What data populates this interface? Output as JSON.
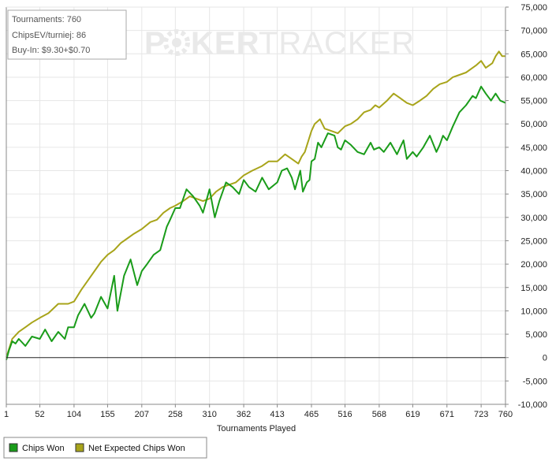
{
  "colors": {
    "chips_won": "#1a9c1a",
    "net_expected": "#a8a41a",
    "grid": "#e6e6e6",
    "zero_line": "#222222",
    "axis": "#888888"
  },
  "watermark": {
    "part1": "P",
    "part2": "KER",
    "part3": "TRACKER"
  },
  "info_box": {
    "line1": "Tournaments: 760",
    "line2": "ChipsEV/turniej: 86",
    "line3": "Buy-In: $9.30+$0.70"
  },
  "legend": {
    "item1": "Chips Won",
    "item2": "Net Expected Chips Won"
  },
  "chart_data": {
    "type": "line",
    "xlabel": "Tournaments Played",
    "ylabel": "",
    "xlim": [
      1,
      760
    ],
    "ylim": [
      -10000,
      75000
    ],
    "x_ticks": [
      1,
      52,
      104,
      155,
      207,
      258,
      310,
      362,
      413,
      465,
      516,
      568,
      619,
      671,
      723,
      760
    ],
    "y_ticks": [
      -10000,
      -5000,
      0,
      5000,
      10000,
      15000,
      20000,
      25000,
      30000,
      35000,
      40000,
      45000,
      50000,
      55000,
      60000,
      65000,
      70000,
      75000
    ],
    "y_tick_labels": [
      "-10,000",
      "-5,000",
      "0",
      "5,000",
      "10,000",
      "15,000",
      "20,000",
      "25,000",
      "30,000",
      "35,000",
      "40,000",
      "45,000",
      "50,000",
      "55,000",
      "60,000",
      "65,000",
      "70,000",
      "75,000"
    ],
    "grid": true,
    "legend_position": "bottom-left",
    "series": [
      {
        "name": "Chips Won",
        "x": [
          1,
          5,
          10,
          15,
          20,
          30,
          40,
          52,
          60,
          70,
          80,
          90,
          95,
          104,
          110,
          120,
          130,
          135,
          145,
          155,
          165,
          170,
          180,
          190,
          200,
          207,
          215,
          225,
          235,
          245,
          250,
          258,
          265,
          275,
          285,
          295,
          300,
          310,
          318,
          325,
          335,
          345,
          355,
          362,
          370,
          380,
          390,
          400,
          413,
          420,
          428,
          435,
          440,
          448,
          452,
          458,
          462,
          465,
          470,
          475,
          480,
          490,
          500,
          505,
          510,
          516,
          525,
          535,
          545,
          555,
          560,
          568,
          575,
          585,
          595,
          605,
          610,
          619,
          625,
          635,
          645,
          655,
          660,
          665,
          671,
          680,
          690,
          700,
          710,
          715,
          723,
          730,
          738,
          745,
          752,
          760
        ],
        "values": [
          -500,
          1500,
          3500,
          3000,
          4000,
          2500,
          4500,
          4000,
          6000,
          3500,
          5500,
          4000,
          6500,
          6500,
          9000,
          11500,
          8500,
          9500,
          13000,
          10500,
          17500,
          10000,
          17500,
          21000,
          15500,
          18500,
          20000,
          22000,
          23000,
          28000,
          29500,
          32000,
          32000,
          36000,
          34500,
          32500,
          31000,
          36000,
          30000,
          33500,
          37500,
          36500,
          35000,
          38000,
          36500,
          35500,
          38500,
          36000,
          37500,
          40000,
          40500,
          38500,
          36000,
          40000,
          35500,
          37500,
          38000,
          42000,
          42500,
          46000,
          45000,
          48000,
          47500,
          45000,
          44500,
          46500,
          45500,
          44000,
          43500,
          46000,
          44500,
          45000,
          44000,
          46000,
          43500,
          46500,
          42500,
          44000,
          43000,
          45000,
          47500,
          44000,
          45500,
          47500,
          46500,
          49500,
          52500,
          54000,
          56000,
          55500,
          58000,
          56500,
          55000,
          56500,
          55000,
          54500
        ]
      },
      {
        "name": "Net Expected Chips Won",
        "x": [
          1,
          10,
          20,
          30,
          40,
          52,
          65,
          80,
          95,
          104,
          115,
          125,
          135,
          145,
          155,
          165,
          175,
          185,
          195,
          207,
          220,
          230,
          240,
          250,
          258,
          270,
          280,
          290,
          300,
          310,
          320,
          330,
          340,
          350,
          362,
          375,
          390,
          400,
          413,
          425,
          435,
          445,
          450,
          455,
          465,
          470,
          478,
          485,
          495,
          505,
          516,
          525,
          535,
          545,
          555,
          562,
          568,
          580,
          590,
          600,
          610,
          619,
          630,
          640,
          650,
          660,
          671,
          680,
          690,
          700,
          710,
          715,
          723,
          730,
          740,
          745,
          750,
          755,
          760
        ],
        "values": [
          0,
          4000,
          5500,
          6500,
          7500,
          8500,
          9500,
          11500,
          11500,
          12000,
          14500,
          16500,
          18500,
          20500,
          22000,
          23000,
          24500,
          25500,
          26500,
          27500,
          29000,
          29500,
          31000,
          32000,
          32500,
          33500,
          34500,
          34000,
          33500,
          34000,
          35500,
          36500,
          37000,
          37500,
          39000,
          40000,
          41000,
          42000,
          42000,
          43500,
          42500,
          41500,
          43000,
          44000,
          48500,
          50000,
          51000,
          49000,
          48500,
          48000,
          49500,
          50000,
          51000,
          52500,
          53000,
          54000,
          53500,
          55000,
          56500,
          55500,
          54500,
          54000,
          55000,
          56000,
          57500,
          58500,
          59000,
          60000,
          60500,
          61000,
          62000,
          62500,
          63500,
          62000,
          63000,
          64500,
          65500,
          64500,
          64500
        ]
      }
    ]
  }
}
